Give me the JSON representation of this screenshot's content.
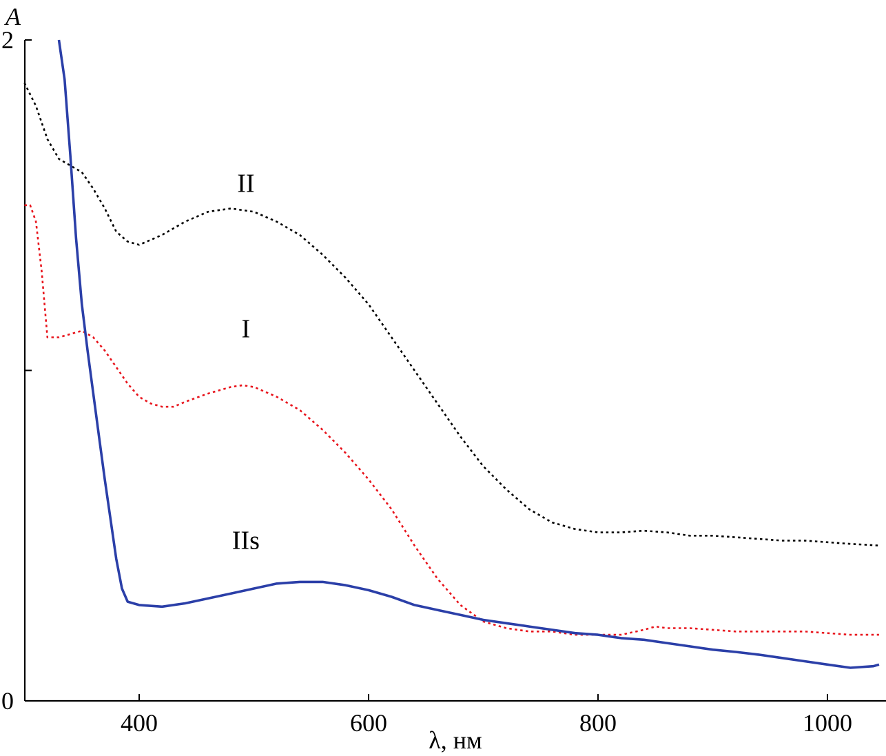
{
  "chart_data": {
    "type": "line",
    "xlabel": "λ, нм",
    "ylabel": "A",
    "xlim": [
      300,
      1045
    ],
    "ylim": [
      0,
      2
    ],
    "x_ticks": [
      400,
      600,
      800,
      1000
    ],
    "y_ticks": [
      0,
      1,
      2
    ],
    "y_tick_labels": [
      "0",
      "",
      "2"
    ],
    "grid": false,
    "series": [
      {
        "name": "II",
        "color": "#000000",
        "style": "dotted",
        "points": [
          [
            300,
            1.87
          ],
          [
            310,
            1.8
          ],
          [
            320,
            1.7
          ],
          [
            330,
            1.64
          ],
          [
            340,
            1.62
          ],
          [
            350,
            1.6
          ],
          [
            360,
            1.55
          ],
          [
            370,
            1.49
          ],
          [
            380,
            1.42
          ],
          [
            390,
            1.39
          ],
          [
            400,
            1.38
          ],
          [
            420,
            1.41
          ],
          [
            440,
            1.45
          ],
          [
            460,
            1.48
          ],
          [
            480,
            1.49
          ],
          [
            500,
            1.48
          ],
          [
            520,
            1.45
          ],
          [
            540,
            1.41
          ],
          [
            560,
            1.35
          ],
          [
            580,
            1.28
          ],
          [
            600,
            1.2
          ],
          [
            620,
            1.1
          ],
          [
            640,
            1.0
          ],
          [
            660,
            0.9
          ],
          [
            680,
            0.8
          ],
          [
            700,
            0.71
          ],
          [
            720,
            0.64
          ],
          [
            740,
            0.58
          ],
          [
            760,
            0.54
          ],
          [
            780,
            0.52
          ],
          [
            800,
            0.51
          ],
          [
            820,
            0.51
          ],
          [
            840,
            0.515
          ],
          [
            860,
            0.51
          ],
          [
            880,
            0.5
          ],
          [
            900,
            0.5
          ],
          [
            920,
            0.495
          ],
          [
            940,
            0.49
          ],
          [
            960,
            0.485
          ],
          [
            980,
            0.485
          ],
          [
            1000,
            0.48
          ],
          [
            1020,
            0.475
          ],
          [
            1045,
            0.47
          ]
        ]
      },
      {
        "name": "I",
        "color": "#e8141c",
        "style": "dotted",
        "points": [
          [
            300,
            1.5
          ],
          [
            305,
            1.5
          ],
          [
            310,
            1.45
          ],
          [
            315,
            1.3
          ],
          [
            320,
            1.1
          ],
          [
            330,
            1.1
          ],
          [
            340,
            1.11
          ],
          [
            350,
            1.12
          ],
          [
            360,
            1.1
          ],
          [
            370,
            1.06
          ],
          [
            380,
            1.01
          ],
          [
            390,
            0.96
          ],
          [
            400,
            0.92
          ],
          [
            410,
            0.9
          ],
          [
            420,
            0.89
          ],
          [
            430,
            0.89
          ],
          [
            440,
            0.905
          ],
          [
            460,
            0.93
          ],
          [
            480,
            0.95
          ],
          [
            490,
            0.955
          ],
          [
            500,
            0.95
          ],
          [
            520,
            0.92
          ],
          [
            540,
            0.88
          ],
          [
            560,
            0.82
          ],
          [
            580,
            0.75
          ],
          [
            600,
            0.67
          ],
          [
            620,
            0.58
          ],
          [
            640,
            0.47
          ],
          [
            660,
            0.37
          ],
          [
            680,
            0.29
          ],
          [
            700,
            0.24
          ],
          [
            720,
            0.22
          ],
          [
            740,
            0.21
          ],
          [
            760,
            0.21
          ],
          [
            780,
            0.2
          ],
          [
            800,
            0.2
          ],
          [
            820,
            0.2
          ],
          [
            840,
            0.215
          ],
          [
            850,
            0.225
          ],
          [
            860,
            0.22
          ],
          [
            880,
            0.22
          ],
          [
            900,
            0.215
          ],
          [
            920,
            0.21
          ],
          [
            940,
            0.21
          ],
          [
            960,
            0.21
          ],
          [
            980,
            0.21
          ],
          [
            1000,
            0.205
          ],
          [
            1020,
            0.2
          ],
          [
            1045,
            0.2
          ]
        ]
      },
      {
        "name": "IIs",
        "color": "#2b3fa8",
        "style": "solid",
        "points": [
          [
            330,
            2.0
          ],
          [
            335,
            1.88
          ],
          [
            340,
            1.65
          ],
          [
            345,
            1.4
          ],
          [
            350,
            1.2
          ],
          [
            355,
            1.06
          ],
          [
            360,
            0.93
          ],
          [
            365,
            0.8
          ],
          [
            370,
            0.67
          ],
          [
            375,
            0.55
          ],
          [
            380,
            0.43
          ],
          [
            385,
            0.34
          ],
          [
            390,
            0.3
          ],
          [
            400,
            0.29
          ],
          [
            420,
            0.285
          ],
          [
            440,
            0.295
          ],
          [
            460,
            0.31
          ],
          [
            480,
            0.325
          ],
          [
            500,
            0.34
          ],
          [
            520,
            0.355
          ],
          [
            540,
            0.36
          ],
          [
            560,
            0.36
          ],
          [
            580,
            0.35
          ],
          [
            600,
            0.335
          ],
          [
            620,
            0.315
          ],
          [
            640,
            0.29
          ],
          [
            660,
            0.275
          ],
          [
            680,
            0.26
          ],
          [
            700,
            0.245
          ],
          [
            720,
            0.235
          ],
          [
            740,
            0.225
          ],
          [
            760,
            0.215
          ],
          [
            780,
            0.205
          ],
          [
            800,
            0.2
          ],
          [
            820,
            0.19
          ],
          [
            840,
            0.185
          ],
          [
            860,
            0.175
          ],
          [
            880,
            0.165
          ],
          [
            900,
            0.155
          ],
          [
            920,
            0.148
          ],
          [
            940,
            0.14
          ],
          [
            960,
            0.13
          ],
          [
            980,
            0.12
          ],
          [
            1000,
            0.11
          ],
          [
            1020,
            0.1
          ],
          [
            1040,
            0.105
          ],
          [
            1045,
            0.11
          ]
        ]
      }
    ],
    "annotations": [
      {
        "text": "II",
        "x": 490,
        "y": 1.54
      },
      {
        "text": "I",
        "x": 490,
        "y": 1.1
      },
      {
        "text": "IIs",
        "x": 490,
        "y": 0.46
      }
    ]
  }
}
